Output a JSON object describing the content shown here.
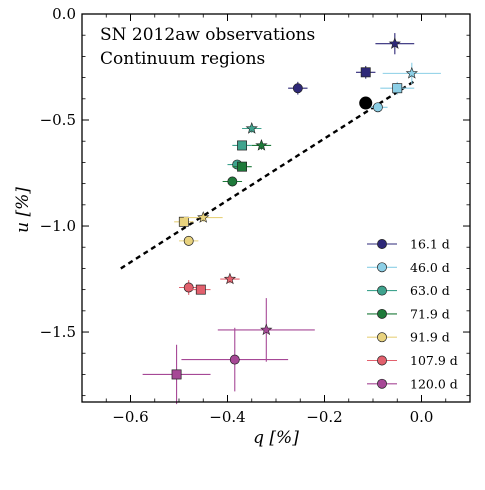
{
  "chart_data": {
    "type": "scatter",
    "annotation_lines": [
      "SN 2012aw observations",
      "Continuum regions"
    ],
    "xlabel": "q [%]",
    "ylabel": "u [%]",
    "xlim": [
      -0.7,
      0.1
    ],
    "ylim": [
      -1.83,
      0.0
    ],
    "x_inverted": false,
    "y_axis_top_is_zero": true,
    "xticks": [
      -0.6,
      -0.4,
      -0.2,
      0.0
    ],
    "xtick_labels": [
      "−0.6",
      "−0.4",
      "−0.2",
      "0.0"
    ],
    "yticks": [
      0.0,
      -0.5,
      -1.0,
      -1.5
    ],
    "ytick_labels": [
      "0.0",
      "−0.5",
      "−1.0",
      "−1.5"
    ],
    "grid": false,
    "legend_position": "lower-right",
    "isp_point": {
      "x": -0.115,
      "y": -0.42,
      "color": "#000000"
    },
    "fit_line": {
      "x": [
        -0.62,
        -0.01
      ],
      "y": [
        -1.2,
        -0.31
      ],
      "style": "dashed",
      "color": "#000000"
    },
    "series": [
      {
        "name": "16.1 d",
        "color": "#2e2878",
        "points": [
          {
            "marker": "circle",
            "x": -0.255,
            "y": -0.35,
            "xerr": 0.02,
            "yerr": 0.03
          },
          {
            "marker": "square",
            "x": -0.115,
            "y": -0.275,
            "xerr": 0.02,
            "yerr": 0.03
          },
          {
            "marker": "star",
            "x": -0.055,
            "y": -0.14,
            "xerr": 0.04,
            "yerr": 0.05
          }
        ]
      },
      {
        "name": "46.0 d",
        "color": "#8ccfe6",
        "points": [
          {
            "marker": "circle",
            "x": -0.09,
            "y": -0.44,
            "xerr": 0.02,
            "yerr": 0.02
          },
          {
            "marker": "square",
            "x": -0.05,
            "y": -0.35,
            "xerr": 0.035,
            "yerr": 0.03
          },
          {
            "marker": "star",
            "x": -0.02,
            "y": -0.28,
            "xerr": 0.06,
            "yerr": 0.05
          }
        ]
      },
      {
        "name": "63.0 d",
        "color": "#3fa38e",
        "points": [
          {
            "marker": "circle",
            "x": -0.38,
            "y": -0.71,
            "xerr": 0.02,
            "yerr": 0.02
          },
          {
            "marker": "square",
            "x": -0.37,
            "y": -0.62,
            "xerr": 0.02,
            "yerr": 0.02
          },
          {
            "marker": "star",
            "x": -0.35,
            "y": -0.54,
            "xerr": 0.02,
            "yerr": 0.02
          }
        ]
      },
      {
        "name": "71.9 d",
        "color": "#1e7a3a",
        "points": [
          {
            "marker": "circle",
            "x": -0.39,
            "y": -0.79,
            "xerr": 0.02,
            "yerr": 0.02
          },
          {
            "marker": "square",
            "x": -0.37,
            "y": -0.72,
            "xerr": 0.02,
            "yerr": 0.02
          },
          {
            "marker": "star",
            "x": -0.33,
            "y": -0.62,
            "xerr": 0.02,
            "yerr": 0.02
          }
        ]
      },
      {
        "name": "91.9 d",
        "color": "#e8d27e",
        "points": [
          {
            "marker": "circle",
            "x": -0.48,
            "y": -1.07,
            "xerr": 0.02,
            "yerr": 0.02
          },
          {
            "marker": "square",
            "x": -0.49,
            "y": -0.98,
            "xerr": 0.02,
            "yerr": 0.02
          },
          {
            "marker": "star",
            "x": -0.45,
            "y": -0.96,
            "xerr": 0.04,
            "yerr": 0.02
          }
        ]
      },
      {
        "name": "107.9 d",
        "color": "#e2606d",
        "points": [
          {
            "marker": "circle",
            "x": -0.48,
            "y": -1.29,
            "xerr": 0.02,
            "yerr": 0.035
          },
          {
            "marker": "square",
            "x": -0.455,
            "y": -1.3,
            "xerr": 0.02,
            "yerr": 0.02
          },
          {
            "marker": "star",
            "x": -0.395,
            "y": -1.25,
            "xerr": 0.02,
            "yerr": 0.02
          }
        ]
      },
      {
        "name": "120.0 d",
        "color": "#a64896",
        "points": [
          {
            "marker": "circle",
            "x": -0.385,
            "y": -1.63,
            "xerr": 0.11,
            "yerr": 0.15
          },
          {
            "marker": "square",
            "x": -0.505,
            "y": -1.7,
            "xerr": 0.07,
            "yerr": 0.14
          },
          {
            "marker": "star",
            "x": -0.32,
            "y": -1.49,
            "xerr": 0.1,
            "yerr": 0.15
          }
        ]
      }
    ]
  }
}
